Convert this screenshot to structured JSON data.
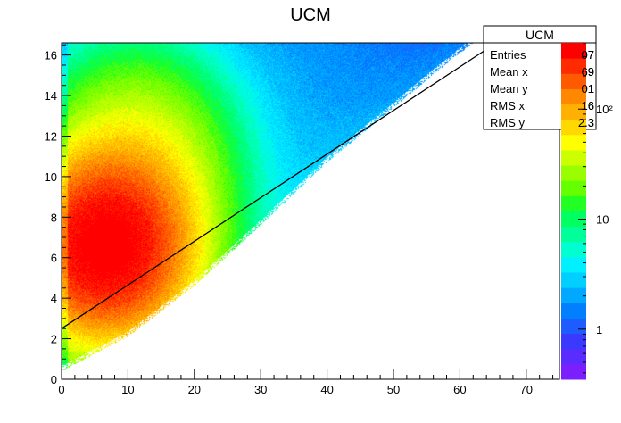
{
  "chart_data": {
    "type": "heatmap",
    "title": "UCM",
    "xlim": [
      0,
      75
    ],
    "ylim": [
      0,
      16.6
    ],
    "x_ticks": [
      0,
      10,
      20,
      30,
      40,
      50,
      60,
      70
    ],
    "y_ticks": [
      0,
      2,
      4,
      6,
      8,
      10,
      12,
      14,
      16
    ],
    "color_scale": "log",
    "z_range": [
      0.35,
      400
    ],
    "z_ticks": [
      {
        "value": 1,
        "label": "1"
      },
      {
        "value": 10,
        "label": "10"
      },
      {
        "value": 100,
        "label": "10²"
      }
    ],
    "palette": [
      "#7b1fff",
      "#5a2cff",
      "#3a3aff",
      "#1e5cff",
      "#0080ff",
      "#00a8ff",
      "#00cfff",
      "#00f0ff",
      "#00ffd0",
      "#00ff9a",
      "#00ff60",
      "#22ff22",
      "#66ff00",
      "#99ff00",
      "#ccff00",
      "#ffff00",
      "#ffd800",
      "#ffb000",
      "#ff8800",
      "#ff5a00",
      "#ff2a00",
      "#ff0000"
    ],
    "distribution": {
      "lower_edge": [
        [
          0,
          0.4
        ],
        [
          10,
          2.1
        ],
        [
          20,
          4.6
        ],
        [
          30,
          7.6
        ],
        [
          40,
          10.7
        ],
        [
          50,
          13.4
        ],
        [
          57,
          15.3
        ],
        [
          62,
          16.6
        ]
      ],
      "peak": {
        "x": 6.5,
        "y": 6.5,
        "counts": 400
      },
      "color_zones": [
        {
          "label": "red",
          "center": [
            7,
            6.5
          ]
        },
        {
          "label": "yellow",
          "center": [
            11,
            8.5
          ]
        },
        {
          "label": "green",
          "center": [
            14,
            11
          ]
        },
        {
          "label": "blue",
          "center": [
            30,
            13
          ]
        }
      ]
    },
    "overlays": [
      {
        "type": "line",
        "points": [
          [
            0,
            2.5
          ],
          [
            65.5,
            16.6
          ]
        ],
        "color": "#000000"
      },
      {
        "type": "hline",
        "y": 5,
        "x_range": [
          21.5,
          75
        ],
        "color": "#000000"
      }
    ],
    "stats_box": {
      "title": "UCM",
      "rows": [
        {
          "label": "Entries",
          "value": "07"
        },
        {
          "label": "Mean x",
          "value": "69"
        },
        {
          "label": "Mean y",
          "value": "01"
        },
        {
          "label": "RMS x",
          "value": "16"
        },
        {
          "label": "RMS y",
          "value": "2.3"
        }
      ],
      "trailing_digits": "07"
    }
  }
}
